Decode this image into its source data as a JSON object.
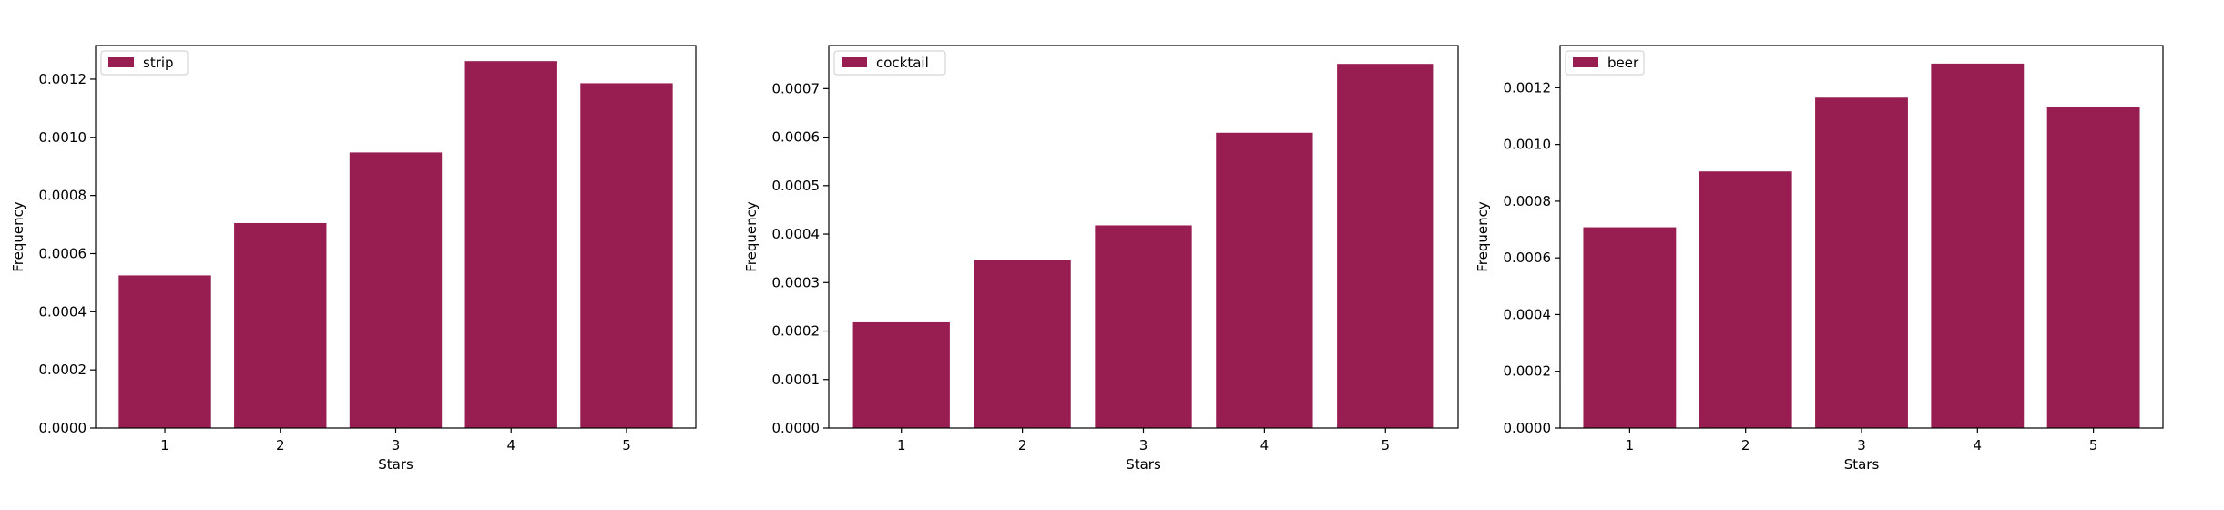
{
  "chart_data": [
    {
      "type": "bar",
      "title": "",
      "xlabel": "Stars",
      "ylabel": "Frequency",
      "categories": [
        "1",
        "2",
        "3",
        "4",
        "5"
      ],
      "series": [
        {
          "name": "strip",
          "values": [
            0.000525,
            0.000705,
            0.000948,
            0.001262,
            0.001186
          ]
        }
      ],
      "ylim": [
        0,
        0.0013158
      ],
      "yticks": [
        "0.0000",
        "0.0002",
        "0.0004",
        "0.0006",
        "0.0008",
        "0.0010",
        "0.0012"
      ],
      "ytick_values": [
        0,
        0.0002,
        0.0004,
        0.0006,
        0.0008,
        0.001,
        0.0012
      ],
      "legend": "upper-left",
      "grid": false,
      "bar_color": "#981e52"
    },
    {
      "type": "bar",
      "title": "",
      "xlabel": "Stars",
      "ylabel": "Frequency",
      "categories": [
        "1",
        "2",
        "3",
        "4",
        "5"
      ],
      "series": [
        {
          "name": "cocktail",
          "values": [
            0.000218,
            0.000346,
            0.000418,
            0.000609,
            0.000751
          ]
        }
      ],
      "ylim": [
        0,
        0.0007889
      ],
      "yticks": [
        "0.0000",
        "0.0001",
        "0.0002",
        "0.0003",
        "0.0004",
        "0.0005",
        "0.0006",
        "0.0007"
      ],
      "ytick_values": [
        0,
        0.0001,
        0.0002,
        0.0003,
        0.0004,
        0.0005,
        0.0006,
        0.0007
      ],
      "legend": "upper-left",
      "grid": false,
      "bar_color": "#981e52"
    },
    {
      "type": "bar",
      "title": "",
      "xlabel": "Stars",
      "ylabel": "Frequency",
      "categories": [
        "1",
        "2",
        "3",
        "4",
        "5"
      ],
      "series": [
        {
          "name": "beer",
          "values": [
            0.000708,
            0.000905,
            0.001165,
            0.001285,
            0.001132
          ]
        }
      ],
      "ylim": [
        0,
        0.0013489
      ],
      "yticks": [
        "0.0000",
        "0.0002",
        "0.0004",
        "0.0006",
        "0.0008",
        "0.0010",
        "0.0012"
      ],
      "ytick_values": [
        0,
        0.0002,
        0.0004,
        0.0006,
        0.0008,
        0.001,
        0.0012
      ],
      "legend": "upper-left",
      "grid": false,
      "bar_color": "#981e52"
    }
  ]
}
